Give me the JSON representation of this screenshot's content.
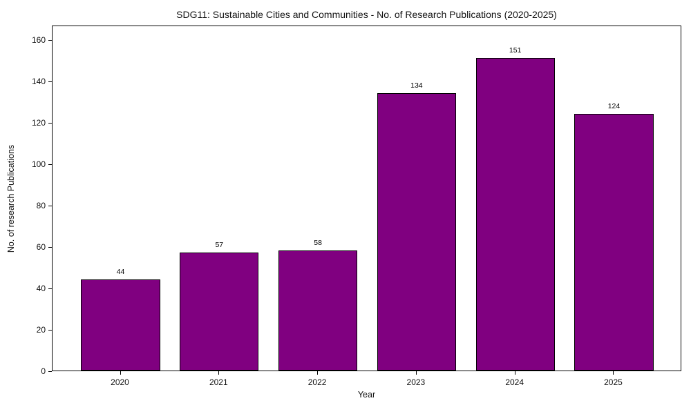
{
  "chart_data": {
    "type": "bar",
    "title": "SDG11: Sustainable Cities and Communities - No. of Research Publications (2020-2025)",
    "xlabel": "Year",
    "ylabel": "No. of research Publications",
    "categories": [
      "2020",
      "2021",
      "2022",
      "2023",
      "2024",
      "2025"
    ],
    "values": [
      44,
      57,
      58,
      134,
      151,
      124
    ],
    "value_labels": [
      "44",
      "57",
      "58",
      "134",
      "151",
      "124"
    ],
    "yticks": [
      0,
      20,
      40,
      60,
      80,
      100,
      120,
      140,
      160
    ],
    "ylim": [
      0,
      167
    ],
    "bar_width_fraction": 0.8,
    "grid": false,
    "legend": "none",
    "bar_color": "#800080",
    "bar_edge_color": "#000000",
    "background_color": "#ffffff",
    "text_color": "#111111"
  }
}
